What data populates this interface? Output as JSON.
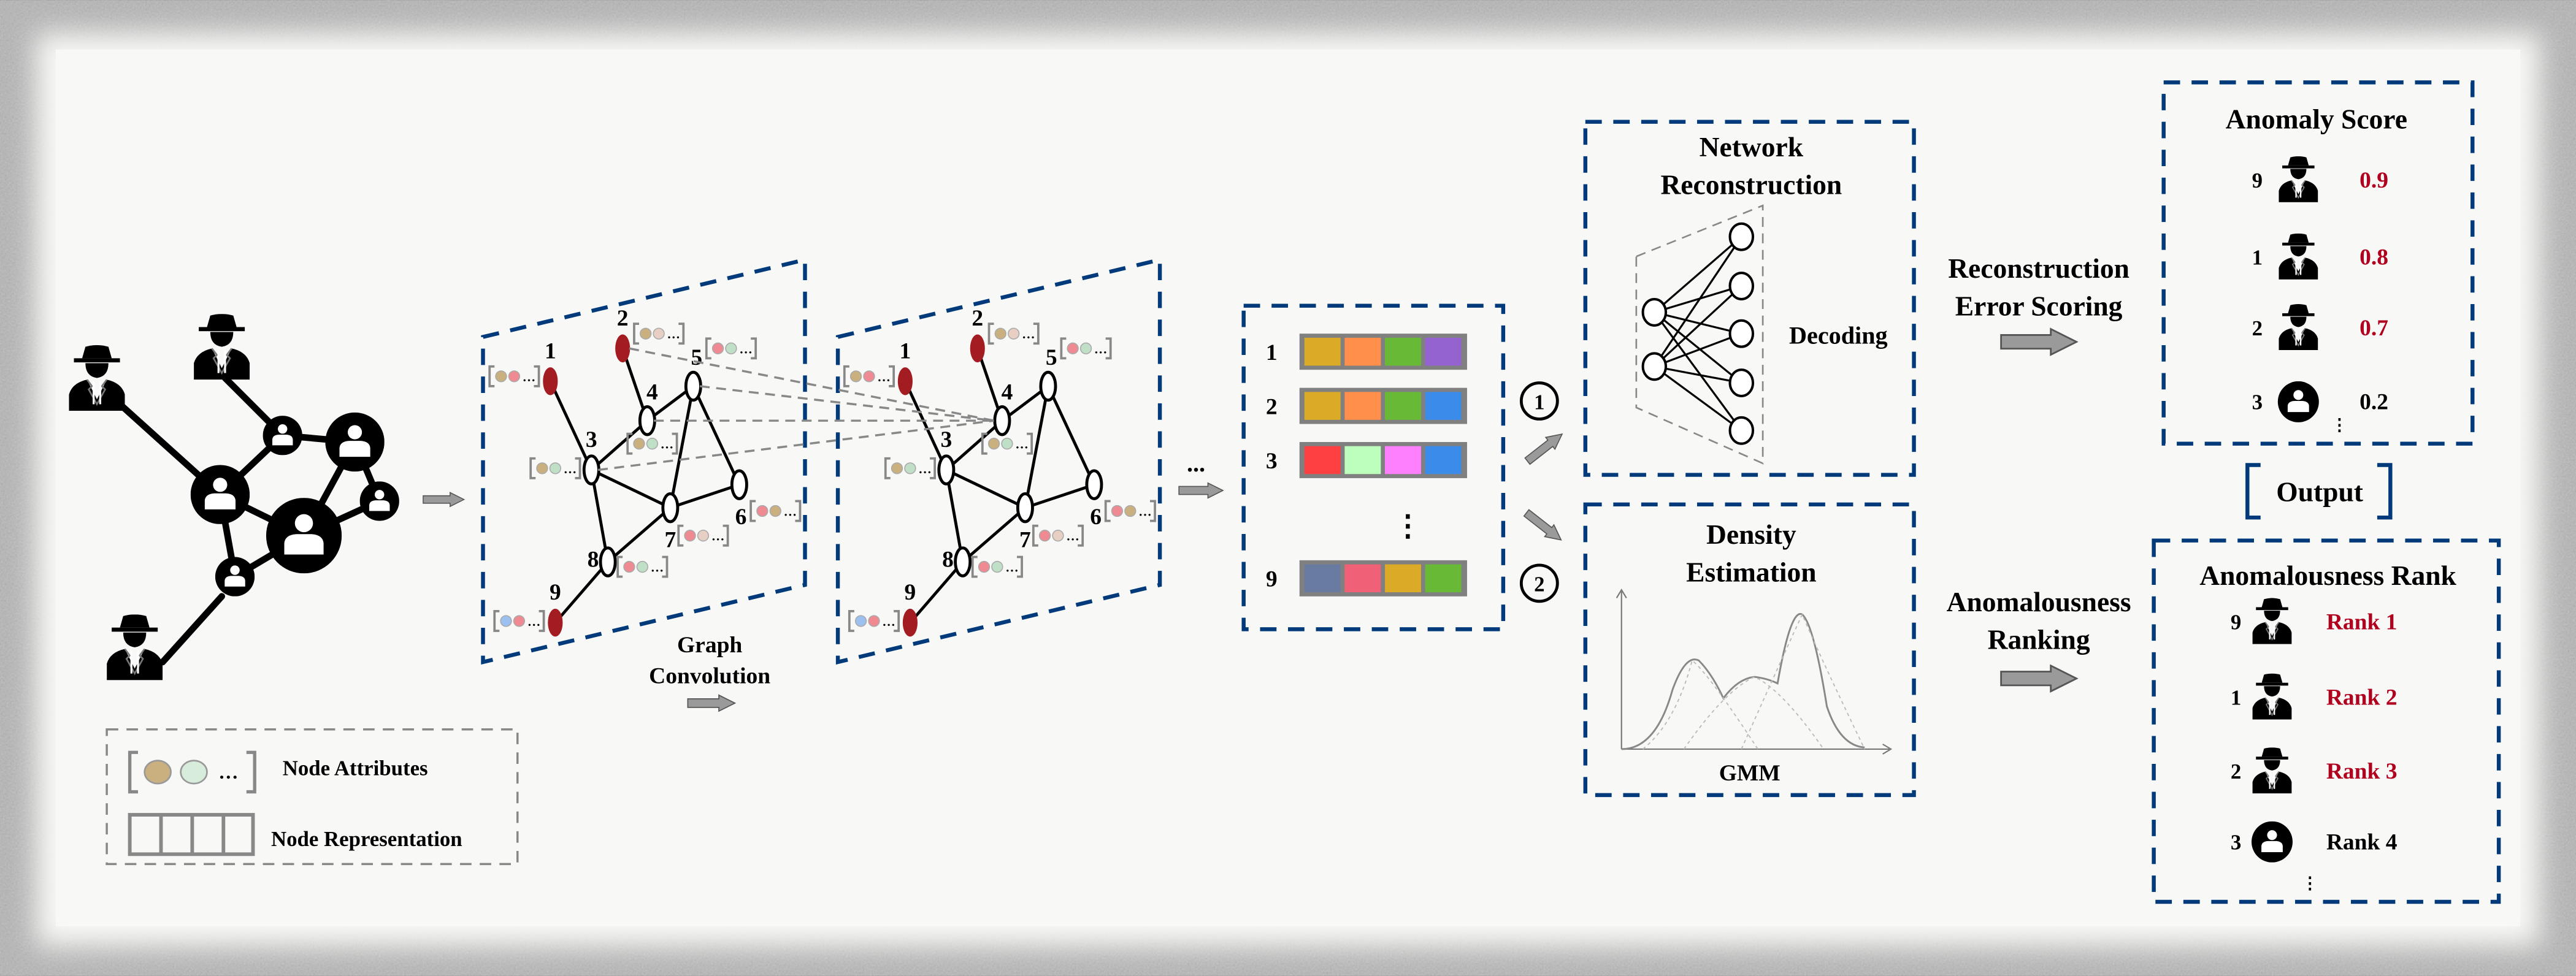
{
  "legend": {
    "node_attributes": "Node Attributes",
    "node_representation": "Node Representation"
  },
  "graph_conv": {
    "line1": "Graph",
    "line2": "Convolution",
    "ellipsis": "..."
  },
  "graph": {
    "nodes": [
      {
        "id": "1",
        "anomalous": true,
        "attrs": [
          "#c9b07e",
          "#f08a92"
        ]
      },
      {
        "id": "2",
        "anomalous": true,
        "attrs": [
          "#c9b07e",
          "#e8cfc4"
        ]
      },
      {
        "id": "3",
        "anomalous": false,
        "attrs": [
          "#c9b07e",
          "#bfe0c6"
        ]
      },
      {
        "id": "4",
        "anomalous": false,
        "attrs": [
          "#c9b07e",
          "#bfe0c6"
        ]
      },
      {
        "id": "5",
        "anomalous": false,
        "attrs": [
          "#f08a92",
          "#bfe0c6"
        ]
      },
      {
        "id": "6",
        "anomalous": false,
        "attrs": [
          "#f08a92",
          "#c9b07e"
        ]
      },
      {
        "id": "7",
        "anomalous": false,
        "attrs": [
          "#f08a92",
          "#e8cfc4"
        ]
      },
      {
        "id": "8",
        "anomalous": false,
        "attrs": [
          "#f08a92",
          "#bfe0c6"
        ]
      },
      {
        "id": "9",
        "anomalous": true,
        "attrs": [
          "#9cc0f0",
          "#f08a92"
        ]
      }
    ],
    "edges": [
      [
        "1",
        "3"
      ],
      [
        "2",
        "4"
      ],
      [
        "3",
        "4"
      ],
      [
        "4",
        "5"
      ],
      [
        "3",
        "7"
      ],
      [
        "3",
        "8"
      ],
      [
        "5",
        "7"
      ],
      [
        "5",
        "6"
      ],
      [
        "6",
        "7"
      ],
      [
        "7",
        "8"
      ],
      [
        "8",
        "9"
      ]
    ],
    "attr_ellipsis": "…"
  },
  "embeddings": {
    "rows": [
      {
        "label": "1",
        "colors": [
          "#DBAA27",
          "#FF8F4A",
          "#68B936",
          "#9563CF"
        ]
      },
      {
        "label": "2",
        "colors": [
          "#DBAA27",
          "#FF8F4A",
          "#68B936",
          "#3B8BEA"
        ]
      },
      {
        "label": "3",
        "colors": [
          "#FF4043",
          "#BDFFBC",
          "#FF80FF",
          "#3B8BEA"
        ]
      },
      {
        "label": "9",
        "colors": [
          "#6A7BA2",
          "#F06177",
          "#DBAA27",
          "#68B936"
        ]
      }
    ],
    "vdots": "⋮"
  },
  "branches": [
    "1",
    "2"
  ],
  "network_reconstruction": {
    "title1": "Network",
    "title2": "Reconstruction",
    "decoding": "Decoding"
  },
  "density_estimation": {
    "title1": "Density",
    "title2": "Estimation",
    "gmm": "GMM"
  },
  "reconstruction_scoring": {
    "line1": "Reconstruction",
    "line2": "Error Scoring"
  },
  "anomalousness_ranking": {
    "line1": "Anomalousness",
    "line2": "Ranking"
  },
  "anomaly_score": {
    "title": "Anomaly Score",
    "rows": [
      {
        "node": "9",
        "icon": "spy-icon",
        "score": "0.9",
        "highlight": true
      },
      {
        "node": "1",
        "icon": "spy-icon",
        "score": "0.8",
        "highlight": true
      },
      {
        "node": "2",
        "icon": "spy-icon",
        "score": "0.7",
        "highlight": true
      },
      {
        "node": "3",
        "icon": "user-icon",
        "score": "0.2",
        "highlight": false
      }
    ]
  },
  "output_label": "Output",
  "anomalousness_rank": {
    "title": "Anomalousness Rank",
    "rows": [
      {
        "node": "9",
        "icon": "spy-icon",
        "rank": "Rank 1",
        "highlight": true
      },
      {
        "node": "1",
        "icon": "spy-icon",
        "rank": "Rank 2",
        "highlight": true
      },
      {
        "node": "2",
        "icon": "spy-icon",
        "rank": "Rank 3",
        "highlight": true
      },
      {
        "node": "3",
        "icon": "user-icon",
        "rank": "Rank 4",
        "highlight": false
      }
    ]
  },
  "colors": {
    "box_border": "#003a7a",
    "anomaly_red": "#b0001e",
    "anomalous_node": "#a31c22",
    "arrow_fill": "#9a9a9a"
  }
}
